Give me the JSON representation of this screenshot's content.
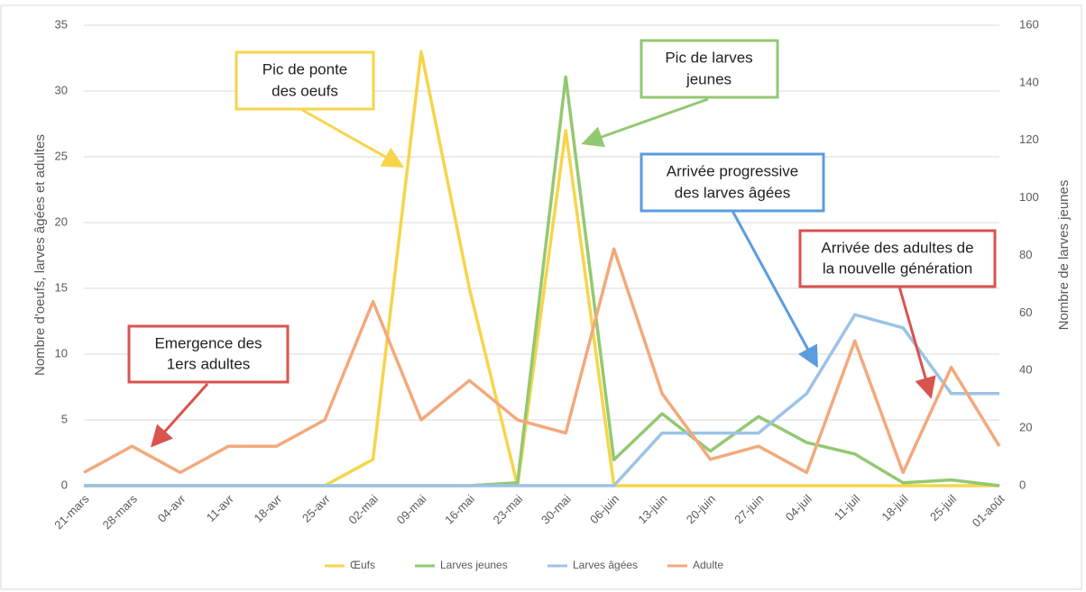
{
  "chart_data": {
    "type": "line",
    "categories": [
      "21-mars",
      "28-mars",
      "04-avr",
      "11-avr",
      "18-avr",
      "25-avr",
      "02-mai",
      "09-mai",
      "16-mai",
      "23-mai",
      "30-mai",
      "06-juin",
      "13-juin",
      "20-juin",
      "27-juin",
      "04-juil",
      "11-juil",
      "18-juil",
      "25-juil",
      "01-août"
    ],
    "series": [
      {
        "name": "Œufs",
        "color": "#f7d54a",
        "values": [
          0,
          0,
          0,
          0,
          0,
          0,
          2,
          33,
          15,
          0,
          27,
          0,
          0,
          0,
          0,
          0,
          0,
          0,
          0,
          0
        ]
      },
      {
        "name": "Larves jeunes",
        "color": "#93c872",
        "axis": "y2",
        "values": [
          0,
          0,
          0,
          0,
          0,
          0,
          0,
          0,
          0,
          1,
          142,
          9,
          25,
          12,
          24,
          15,
          11,
          1,
          2,
          0
        ]
      },
      {
        "name": "Larves âgées",
        "color": "#9cc3e5",
        "values": [
          0,
          0,
          0,
          0,
          0,
          0,
          0,
          0,
          0,
          0,
          0,
          0,
          4,
          4,
          4,
          7,
          13,
          12,
          7,
          7
        ]
      },
      {
        "name": "Adulte",
        "color": "#f3a97c",
        "values": [
          1,
          3,
          1,
          3,
          3,
          5,
          14,
          5,
          8,
          5,
          4,
          18,
          7,
          2,
          3,
          1,
          11,
          1,
          9,
          3
        ]
      }
    ],
    "ylim": [
      0,
      35
    ],
    "yticks": [
      0,
      5,
      10,
      15,
      20,
      25,
      30,
      35
    ],
    "y2lim": [
      0,
      160
    ],
    "y2ticks": [
      0,
      20,
      40,
      60,
      80,
      100,
      120,
      140,
      160
    ],
    "ylabel": "Nombre d'oeufs, larves âgées et adultes",
    "y2label": "Nombre de larves jeunes",
    "grid": true,
    "legend": "bottom",
    "annotations": [
      {
        "lines": [
          "Pic de ponte",
          "des oeufs"
        ]
      },
      {
        "lines": [
          "Pic de larves",
          "jeunes"
        ]
      },
      {
        "lines": [
          "Arrivée progressive",
          "des larves âgées"
        ]
      },
      {
        "lines": [
          "Arrivée des adultes de",
          "la nouvelle génération"
        ]
      },
      {
        "lines": [
          "Emergence des",
          "1ers adultes"
        ]
      }
    ]
  }
}
